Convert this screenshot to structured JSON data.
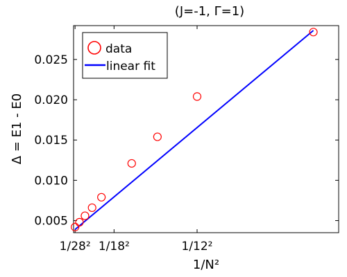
{
  "chart_data": {
    "type": "scatter",
    "title": "(J=-1, Γ=1)",
    "xlabel": "1/N²",
    "ylabel": "Δ = E1 - E0",
    "x_scale": "reciprocal-square",
    "x_unit_label": "N",
    "xlim_N": [
      28.8,
      8.6
    ],
    "ylim": [
      0.0035,
      0.0292
    ],
    "xticks": [
      {
        "N": 28,
        "label": "1/28²"
      },
      {
        "N": 18,
        "label": "1/18²"
      },
      {
        "N": 12,
        "label": "1/12²"
      }
    ],
    "yticks": [
      {
        "value": 0.005,
        "label": "0.005"
      },
      {
        "value": 0.01,
        "label": "0.010"
      },
      {
        "value": 0.015,
        "label": "0.015"
      },
      {
        "value": 0.02,
        "label": "0.020"
      },
      {
        "value": 0.025,
        "label": "0.025"
      }
    ],
    "series": [
      {
        "name": "data",
        "kind": "scatter",
        "marker": "open-circle",
        "color": "#ff0000",
        "N": [
          28,
          26,
          24,
          22,
          20,
          16,
          14,
          12,
          9
        ],
        "y": [
          0.0042,
          0.0048,
          0.0056,
          0.0066,
          0.0079,
          0.0121,
          0.0154,
          0.0204,
          0.0284
        ]
      },
      {
        "name": "linear fit",
        "kind": "line",
        "color": "#0000ff",
        "N": [
          28,
          9
        ],
        "y": [
          0.0039,
          0.0286
        ]
      }
    ],
    "legend_position": "top-left",
    "grid": false
  }
}
